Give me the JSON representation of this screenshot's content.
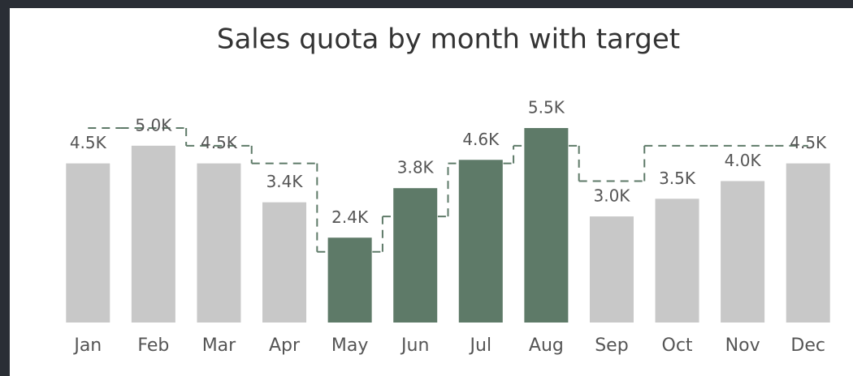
{
  "chart_data": {
    "type": "bar",
    "title": "Sales quota by month with target",
    "categories": [
      "Jan",
      "Feb",
      "Mar",
      "Apr",
      "May",
      "Jun",
      "Jul",
      "Aug",
      "Sep",
      "Oct",
      "Nov",
      "Dec"
    ],
    "values": [
      4500,
      5000,
      4500,
      3400,
      2400,
      3800,
      4600,
      5500,
      3000,
      3500,
      4000,
      4500
    ],
    "value_labels": [
      "4.5K",
      "5.0K",
      "4.5K",
      "3.4K",
      "2.4K",
      "3.8K",
      "4.6K",
      "5.5K",
      "3.0K",
      "3.5K",
      "4.0K",
      "4.5K"
    ],
    "colors": [
      "#c8c8c8",
      "#c8c8c8",
      "#c8c8c8",
      "#c8c8c8",
      "#5e7a68",
      "#5e7a68",
      "#5e7a68",
      "#5e7a68",
      "#c8c8c8",
      "#c8c8c8",
      "#c8c8c8",
      "#c8c8c8"
    ],
    "target": [
      5500,
      5500,
      5000,
      4500,
      2000,
      3000,
      4500,
      5000,
      4000,
      5000,
      5000,
      5000
    ],
    "target_color": "#5e7a68"
  }
}
